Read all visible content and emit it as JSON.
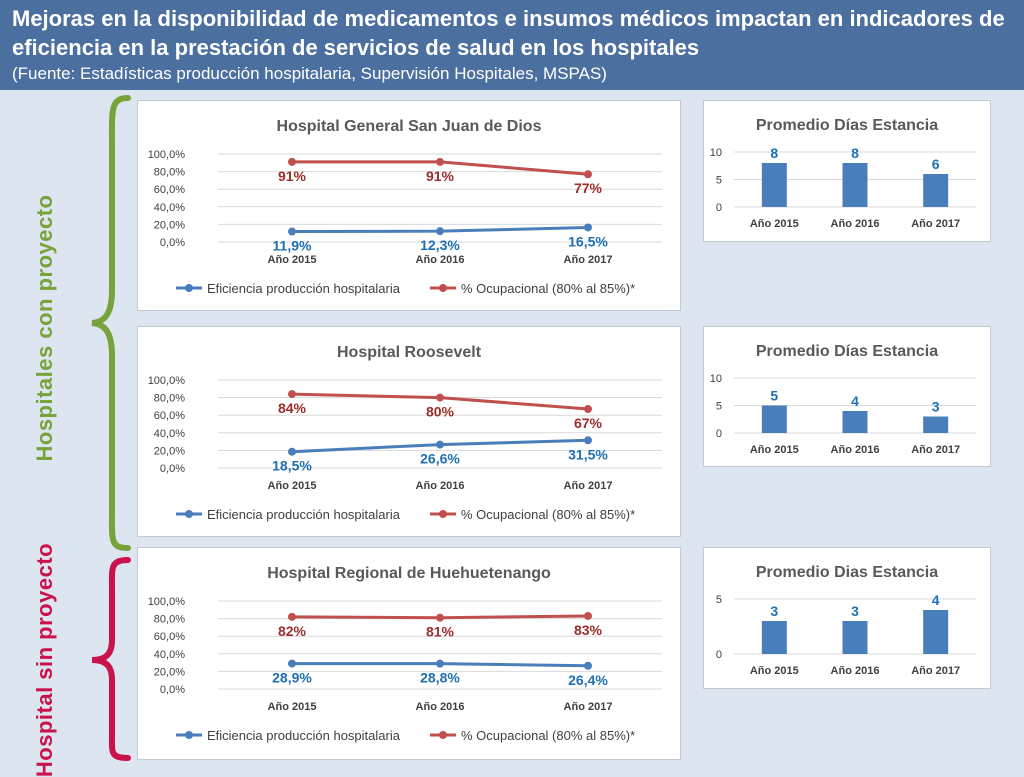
{
  "header": {
    "title_line1": "Mejoras en la disponibilidad de medicamentos e insumos médicos impactan en indicadores de",
    "title_line2": "eficiencia en la prestación de servicios de salud en los hospitales",
    "source": "(Fuente: Estadísticas producción hospitalaria, Supervisión Hospitales, MSPAS)"
  },
  "groups": {
    "with_project": "Hospitales con proyecto",
    "without_project": "Hospital sin proyecto"
  },
  "colors": {
    "header_bg": "#4b6f9f",
    "blue_series": "#4a7ebb",
    "red_series": "#c0504d",
    "blue_label": "#1f6fb2",
    "red_label": "#9b2d2a",
    "bar": "#4a7ebb",
    "green_brace": "#77a33a",
    "red_brace": "#c9134a"
  },
  "chart_data": [
    {
      "type": "line",
      "title": "Hospital General San Juan de Dios",
      "categories": [
        "Año 2015",
        "Año 2016",
        "Año 2017"
      ],
      "y_ticks": [
        "100,0%",
        "80,0%",
        "60,0%",
        "40,0%",
        "20,0%",
        "0,0%"
      ],
      "ylim": [
        0,
        100
      ],
      "series": [
        {
          "name": "Eficiencia producción hospitalaria",
          "values": [
            11.9,
            12.3,
            16.5
          ],
          "labels": [
            "11,9%",
            "12,3%",
            "16,5%"
          ],
          "color": "#4a7ebb"
        },
        {
          "name": "% Ocupacional (80% al 85%)*",
          "values": [
            91,
            91,
            77
          ],
          "labels": [
            "91%",
            "91%",
            "77%"
          ],
          "color": "#c0504d"
        }
      ]
    },
    {
      "type": "line",
      "title": "Hospital Roosevelt",
      "categories": [
        "Año 2015",
        "Año 2016",
        "Año 2017"
      ],
      "y_ticks": [
        "100,0%",
        "80,0%",
        "60,0%",
        "40,0%",
        "20,0%",
        "0,0%"
      ],
      "ylim": [
        0,
        100
      ],
      "series": [
        {
          "name": "Eficiencia producción hospitalaria",
          "values": [
            18.5,
            26.6,
            31.5
          ],
          "labels": [
            "18,5%",
            "26,6%",
            "31,5%"
          ],
          "color": "#4a7ebb"
        },
        {
          "name": "% Ocupacional (80% al 85%)*",
          "values": [
            84,
            80,
            67
          ],
          "labels": [
            "84%",
            "80%",
            "67%"
          ],
          "color": "#c0504d"
        }
      ]
    },
    {
      "type": "line",
      "title": "Hospital Regional de Huehuetenango",
      "categories": [
        "Año 2015",
        "Año 2016",
        "Año 2017"
      ],
      "y_ticks": [
        "100,0%",
        "80,0%",
        "60,0%",
        "40,0%",
        "20,0%",
        "0,0%"
      ],
      "ylim": [
        0,
        100
      ],
      "series": [
        {
          "name": "Eficiencia producción hospitalaria",
          "values": [
            28.9,
            28.8,
            26.4
          ],
          "labels": [
            "28,9%",
            "28,8%",
            "26,4%"
          ],
          "color": "#4a7ebb"
        },
        {
          "name": "% Ocupacional (80% al 85%)*",
          "values": [
            82,
            81,
            83
          ],
          "labels": [
            "82%",
            "81%",
            "83%"
          ],
          "color": "#c0504d"
        }
      ]
    },
    {
      "type": "bar",
      "title": "Promedio Días Estancia",
      "categories": [
        "Año 2015",
        "Año 2016",
        "Año 2017"
      ],
      "values": [
        8,
        8,
        6
      ],
      "labels": [
        "8",
        "8",
        "6"
      ],
      "y_ticks": [
        "10",
        "5",
        "0"
      ],
      "ylim": [
        0,
        10
      ]
    },
    {
      "type": "bar",
      "title": "Promedio Días Estancia",
      "categories": [
        "Año 2015",
        "Año 2016",
        "Año 2017"
      ],
      "values": [
        5,
        4,
        3
      ],
      "labels": [
        "5",
        "4",
        "3"
      ],
      "y_ticks": [
        "10",
        "5",
        "0"
      ],
      "ylim": [
        0,
        10
      ]
    },
    {
      "type": "bar",
      "title": "Promedio Dias Estancia",
      "categories": [
        "Año 2015",
        "Año 2016",
        "Año 2017"
      ],
      "values": [
        3,
        3,
        4
      ],
      "labels": [
        "3",
        "3",
        "4"
      ],
      "y_ticks": [
        "5",
        "0"
      ],
      "ylim": [
        0,
        5
      ]
    }
  ]
}
